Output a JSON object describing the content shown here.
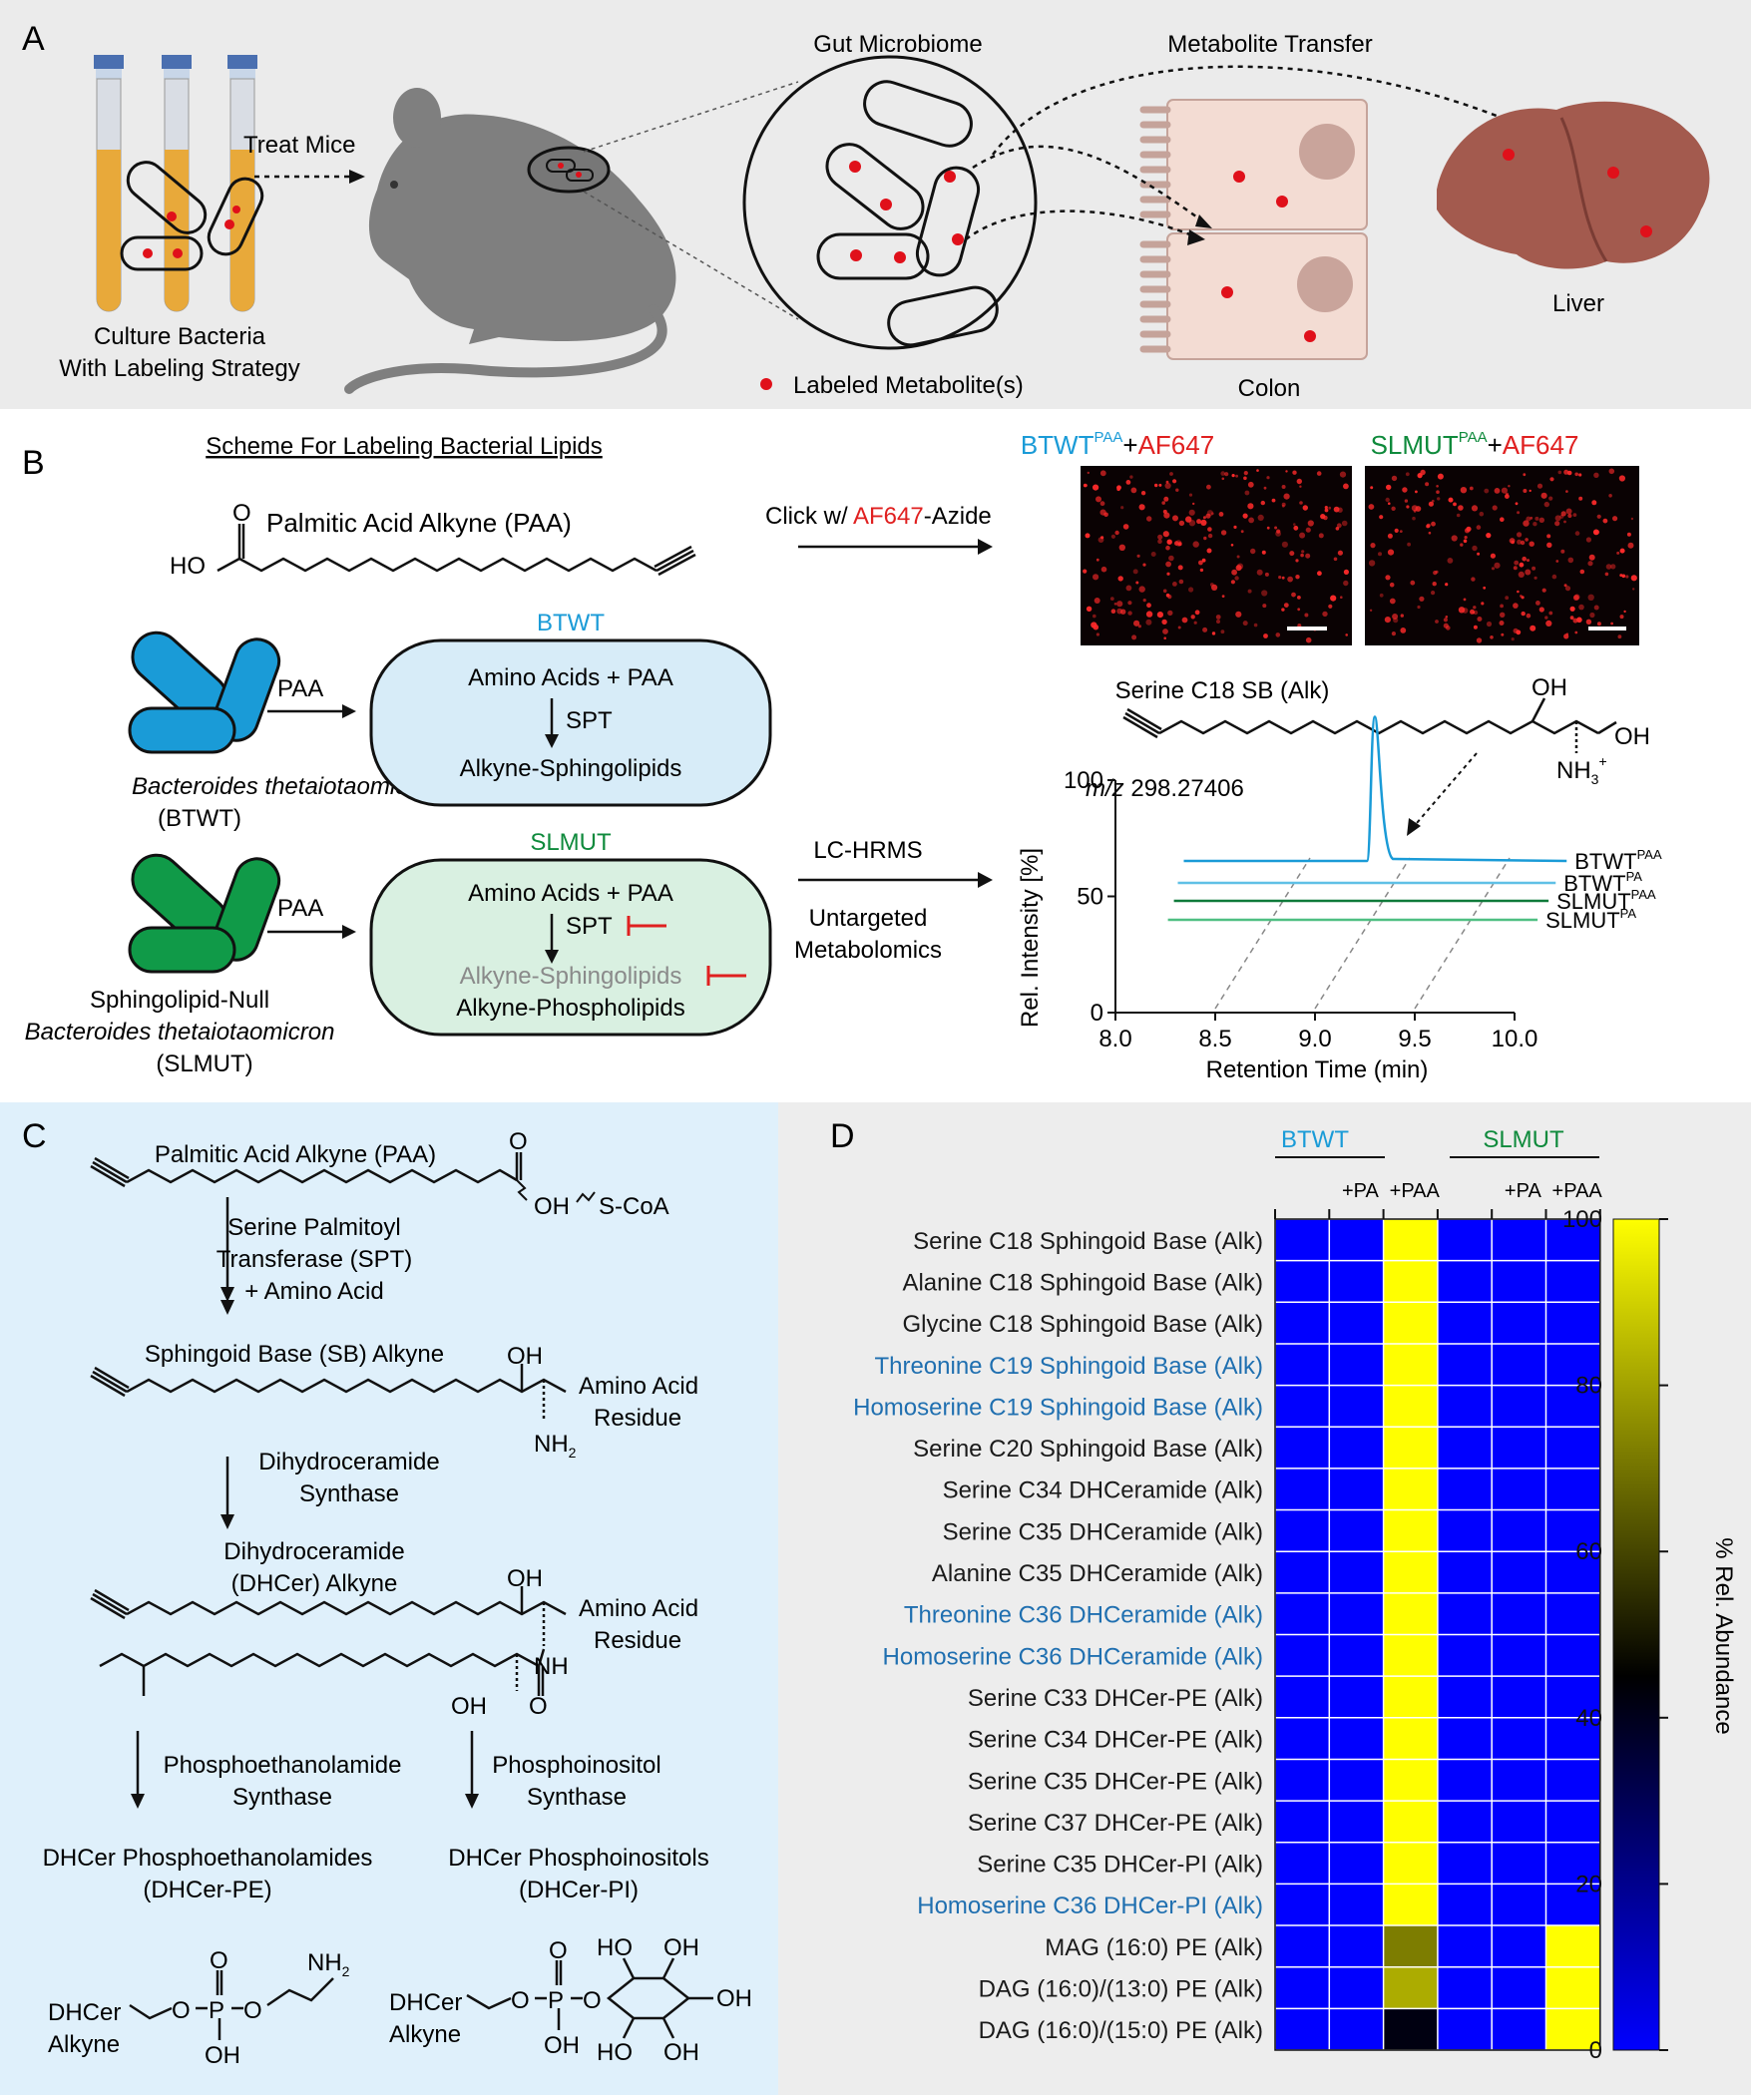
{
  "panelA": {
    "letter": "A",
    "culture_label_1": "Culture Bacteria",
    "culture_label_2": "With Labeling Strategy",
    "treat_mice": "Treat Mice",
    "gut_microbiome": "Gut Microbiome",
    "metabolite_transfer": "Metabolite Transfer",
    "labeled_metabolite": "Labeled Metabolite(s)",
    "colon": "Colon",
    "liver": "Liver"
  },
  "panelB": {
    "letter": "B",
    "scheme_title": "Scheme For Labeling Bacterial Lipids",
    "paa_name": "Palmitic Acid Alkyne (PAA)",
    "ho": "HO",
    "o": "O",
    "click_prefix": "Click w/ ",
    "click_af": "AF647",
    "click_suffix": "-Azide",
    "btwt": "BTWT",
    "slmut": "SLMUT",
    "paa": "PAA",
    "pa": "PA",
    "plus": "+",
    "af647": "AF647",
    "amino_acids_paa": "Amino Acids + PAA",
    "spt": "SPT",
    "alkyne_sphingolipids": "Alkyne-Sphingolipids",
    "alkyne_phospholipids": "Alkyne-Phospholipids",
    "bt_species": "Bacteroides thetaiotaomicron",
    "bt_abbrev": "(BTWT)",
    "sl_null": "Sphingolipid-Null",
    "sl_abbrev": "(SLMUT)",
    "lc_hrms": "LC-HRMS",
    "untargeted_1": "Untargeted",
    "untargeted_2": "Metabolomics",
    "serine_c18_sb": "Serine C18 SB (Alk)",
    "oh": "OH",
    "nh3": "NH",
    "sub3": "3",
    "sup_plus": "+",
    "mz_label": "m/z",
    "mz_value": " 298.27406",
    "trace_labels": [
      "BTWT",
      "BTWT",
      "SLMUT",
      "SLMUT"
    ],
    "trace_sups": [
      "PAA",
      "PA",
      "PAA",
      "PA"
    ],
    "colors": {
      "btwt_blue": "#1a9bd7",
      "slmut_green": "#0f8a3c",
      "red": "#e02020"
    }
  },
  "chart_data": {
    "type": "line",
    "title": "",
    "xlabel": "Retention Time (min)",
    "ylabel": "Rel. Intensity [%]",
    "mz": "m/z 298.27406",
    "xlim": [
      8.0,
      10.0
    ],
    "ylim": [
      0,
      100
    ],
    "xticks": [
      "8.0",
      "8.5",
      "9.0",
      "9.5",
      "10.0"
    ],
    "yticks": [
      "0",
      "50",
      "100"
    ],
    "series": [
      {
        "name": "BTWT PAA",
        "color": "#1a9bd7",
        "peak_x": 9.3,
        "peak_y": 100
      },
      {
        "name": "BTWT PA",
        "color": "#5fc0e6",
        "peak_x": null,
        "peak_y": 0
      },
      {
        "name": "SLMUT PAA",
        "color": "#0f7a3a",
        "peak_x": null,
        "peak_y": 0
      },
      {
        "name": "SLMUT PA",
        "color": "#4fbf82",
        "peak_x": null,
        "peak_y": 0
      }
    ]
  },
  "panelC": {
    "letter": "C",
    "paa_name": "Palmitic Acid Alkyne (PAA)",
    "o": "O",
    "oh": "OH",
    "scoa": "S-CoA",
    "spt_1": "Serine Palmitoyl",
    "spt_2": "Transferase (SPT)",
    "spt_3": "+ Amino Acid",
    "sb_alkyne": "Sphingoid Base (SB) Alkyne",
    "amino_acid": "Amino Acid",
    "residue": "Residue",
    "nh2": "NH",
    "sub2": "2",
    "dhc_synth_1": "Dihydroceramide",
    "dhc_synth_2": "Synthase",
    "dhcer_1": "Dihydroceramide",
    "dhcer_2": "(DHCer) Alkyne",
    "nh": "NH",
    "pe_synth_1": "Phosphoethanolamide",
    "pe_synth_2": "Synthase",
    "pi_synth_1": "Phosphoinositol",
    "pi_synth_2": "Synthase",
    "pe_product_1": "DHCer Phosphoethanolamides",
    "pe_product_2": "(DHCer-PE)",
    "pi_product_1": "DHCer Phosphoinositols",
    "pi_product_2": "(DHCer-PI)",
    "dhcer": "DHCer",
    "alkyne": "Alkyne",
    "ho": "HO",
    "p": "P"
  },
  "panelD": {
    "letter": "D",
    "group_btwt": "BTWT",
    "group_slmut": "SLMUT",
    "col_labels": [
      "",
      "+PA",
      "+PAA",
      "",
      "+PA",
      "+PAA"
    ],
    "colorbar_label": "% Rel. Abundance",
    "colorbar_ticks": [
      "0",
      "20",
      "40",
      "60",
      "80",
      "100"
    ],
    "rows": [
      {
        "label": "Serine C18 Sphingoid Base (Alk)",
        "highlight": false,
        "values": [
          0,
          0,
          100,
          0,
          0,
          0
        ]
      },
      {
        "label": "Alanine C18 Sphingoid Base (Alk)",
        "highlight": false,
        "values": [
          0,
          0,
          100,
          0,
          0,
          0
        ]
      },
      {
        "label": "Glycine C18 Sphingoid Base (Alk)",
        "highlight": false,
        "values": [
          0,
          0,
          100,
          0,
          0,
          0
        ]
      },
      {
        "label": "Threonine C19 Sphingoid Base (Alk)",
        "highlight": true,
        "values": [
          0,
          0,
          100,
          0,
          0,
          0
        ]
      },
      {
        "label": "Homoserine C19 Sphingoid Base (Alk)",
        "highlight": true,
        "values": [
          0,
          0,
          100,
          0,
          0,
          0
        ]
      },
      {
        "label": "Serine C20 Sphingoid Base (Alk)",
        "highlight": false,
        "values": [
          0,
          0,
          100,
          0,
          0,
          0
        ]
      },
      {
        "label": "Serine C34 DHCeramide (Alk)",
        "highlight": false,
        "values": [
          0,
          0,
          100,
          0,
          0,
          0
        ]
      },
      {
        "label": "Serine C35 DHCeramide (Alk)",
        "highlight": false,
        "values": [
          0,
          0,
          100,
          0,
          0,
          0
        ]
      },
      {
        "label": "Alanine C35 DHCeramide (Alk)",
        "highlight": false,
        "values": [
          0,
          0,
          100,
          0,
          0,
          0
        ]
      },
      {
        "label": "Threonine C36 DHCeramide (Alk)",
        "highlight": true,
        "values": [
          0,
          0,
          100,
          0,
          0,
          0
        ]
      },
      {
        "label": "Homoserine C36 DHCeramide (Alk)",
        "highlight": true,
        "values": [
          0,
          0,
          100,
          0,
          0,
          0
        ]
      },
      {
        "label": "Serine C33 DHCer-PE (Alk)",
        "highlight": false,
        "values": [
          0,
          0,
          100,
          0,
          0,
          0
        ]
      },
      {
        "label": "Serine C34 DHCer-PE (Alk)",
        "highlight": false,
        "values": [
          0,
          0,
          100,
          0,
          0,
          0
        ]
      },
      {
        "label": "Serine C35 DHCer-PE (Alk)",
        "highlight": false,
        "values": [
          0,
          0,
          100,
          0,
          0,
          0
        ]
      },
      {
        "label": "Serine C37 DHCer-PE (Alk)",
        "highlight": false,
        "values": [
          0,
          0,
          100,
          0,
          0,
          0
        ]
      },
      {
        "label": "Serine C35 DHCer-PI (Alk)",
        "highlight": false,
        "values": [
          0,
          0,
          100,
          0,
          0,
          0
        ]
      },
      {
        "label": "Homoserine C36 DHCer-PI (Alk)",
        "highlight": true,
        "values": [
          0,
          0,
          100,
          0,
          0,
          0
        ]
      },
      {
        "label": "MAG (16:0) PE (Alk)",
        "highlight": false,
        "values": [
          0,
          0,
          72,
          0,
          0,
          100
        ]
      },
      {
        "label": "DAG (16:0)/(13:0) PE (Alk)",
        "highlight": false,
        "values": [
          0,
          0,
          82,
          0,
          0,
          100
        ]
      },
      {
        "label": "DAG (16:0)/(15:0) PE (Alk)",
        "highlight": false,
        "values": [
          0,
          0,
          42,
          0,
          0,
          100
        ]
      }
    ],
    "colors": {
      "low": "#0000ff",
      "mid": "#000000",
      "high": "#ffff00",
      "highlight_text": "#1f6fb0"
    }
  }
}
